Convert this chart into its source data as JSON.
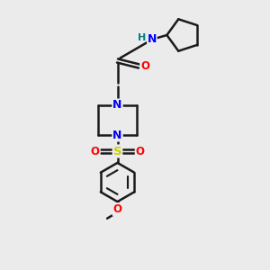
{
  "background_color": "#ebebeb",
  "atom_colors": {
    "C": "#000000",
    "N": "#0000ff",
    "O": "#ff0000",
    "S": "#cccc00",
    "H": "#008080"
  },
  "bond_color": "#1a1a1a",
  "bond_width": 1.8,
  "figsize": [
    3.0,
    3.0
  ],
  "dpi": 100
}
